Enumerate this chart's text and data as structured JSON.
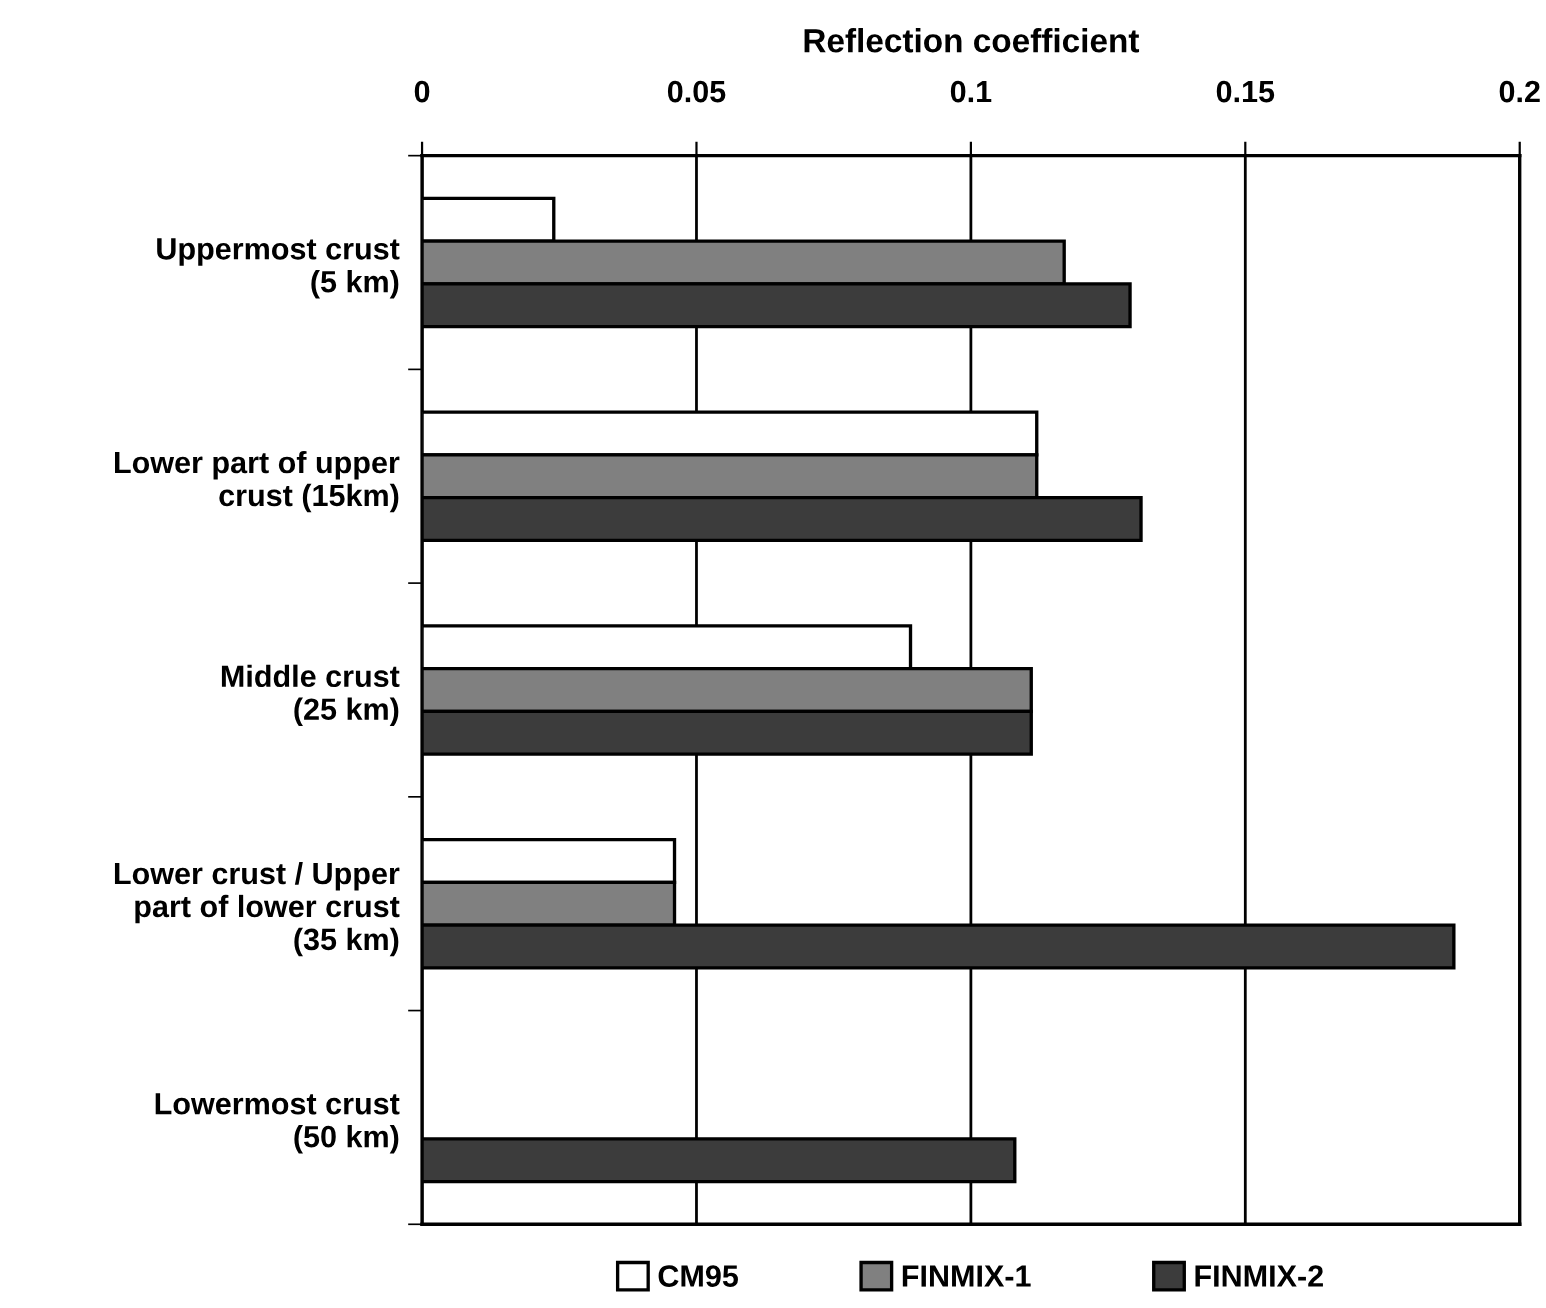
{
  "chart_data": {
    "type": "bar",
    "orientation": "horizontal",
    "xlabel": "Reflection coefficient",
    "categories": [
      "Uppermost crust\n(5 km)",
      "Lower part of upper\ncrust (15km)",
      "Middle crust\n(25 km)",
      "Lower crust / Upper\npart of lower crust\n(35 km)",
      "Lowermost crust\n(50 km)"
    ],
    "series": [
      {
        "name": "CM95",
        "color": "#ffffff",
        "values": [
          0.024,
          0.112,
          0.089,
          0.046,
          null
        ]
      },
      {
        "name": "FINMIX-1",
        "color": "#808080",
        "values": [
          0.117,
          0.112,
          0.111,
          0.046,
          null
        ]
      },
      {
        "name": "FINMIX-2",
        "color": "#3c3c3c",
        "values": [
          0.129,
          0.131,
          0.111,
          0.188,
          0.108
        ]
      }
    ],
    "xlim": [
      0,
      0.2
    ],
    "xticks": [
      0,
      0.05,
      0.1,
      0.15,
      0.2
    ],
    "grid": "x",
    "legend": "bottom"
  }
}
